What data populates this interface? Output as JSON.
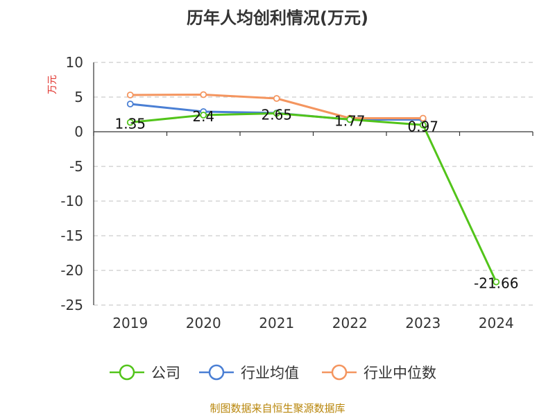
{
  "chart_data": {
    "type": "line",
    "title": "历年人均创利情况(万元)",
    "ylabel": "万元",
    "xlabel": "",
    "categories": [
      "2019",
      "2020",
      "2021",
      "2022",
      "2023",
      "2024"
    ],
    "ylim": [
      -25,
      10
    ],
    "yticks": [
      10,
      5,
      0,
      -5,
      -10,
      -15,
      -20,
      -25
    ],
    "grid": true,
    "legend_position": "bottom",
    "series": [
      {
        "name": "公司",
        "color": "#52c41a",
        "values": [
          1.35,
          2.4,
          2.65,
          1.77,
          0.97,
          -21.66
        ],
        "labels": [
          "1.35",
          "2.4",
          "2.65",
          "1.77",
          "0.97",
          "-21.66"
        ]
      },
      {
        "name": "行业均值",
        "color": "#4a7fd4",
        "values": [
          4.0,
          2.9,
          2.7,
          1.75,
          1.75,
          null
        ]
      },
      {
        "name": "行业中位数",
        "color": "#f4955f",
        "values": [
          5.3,
          5.35,
          4.8,
          1.95,
          1.95,
          null
        ]
      }
    ]
  },
  "source": "制图数据来自恒生聚源数据库"
}
